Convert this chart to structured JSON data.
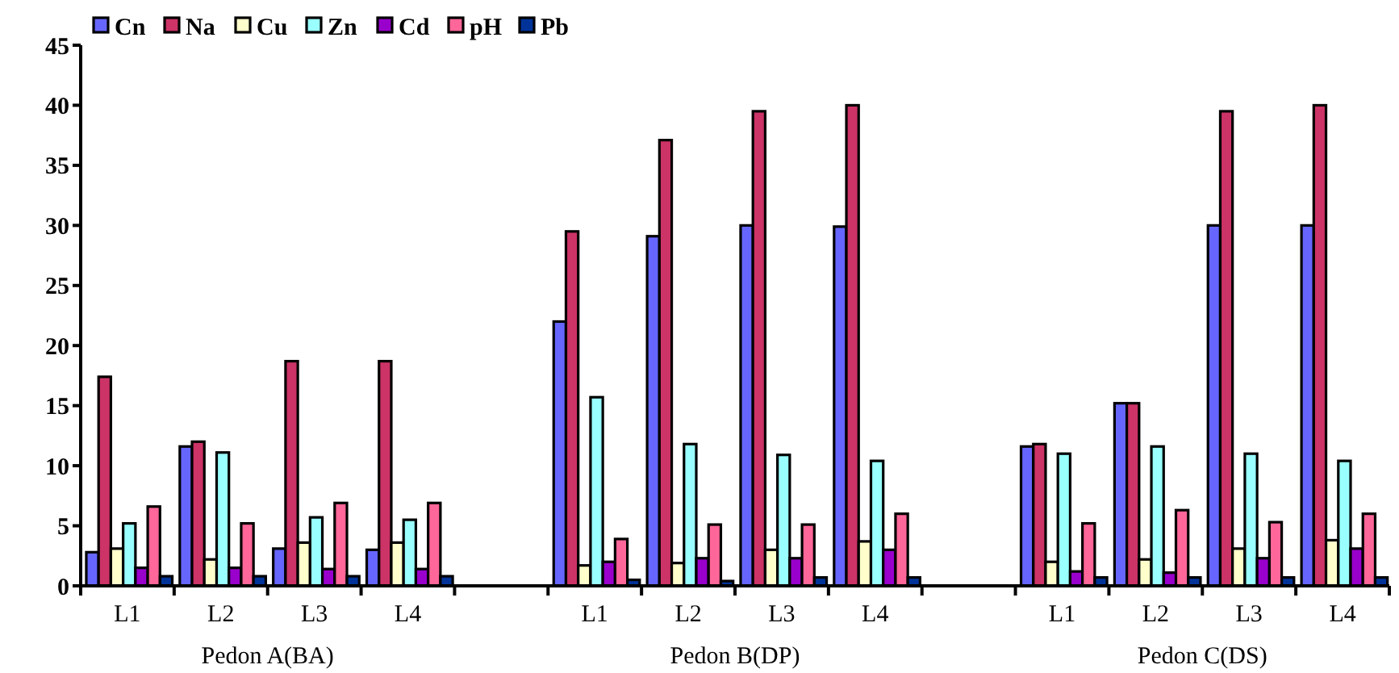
{
  "chart_data": {
    "type": "bar",
    "categories": [
      "L1",
      "L2",
      "L3",
      "L4",
      null,
      "L1",
      "L2",
      "L3",
      "L4",
      null,
      "L1",
      "L2",
      "L3",
      "L4"
    ],
    "series": [
      {
        "name": "Cn",
        "color": "#6666ff",
        "values": [
          2.8,
          11.6,
          3.1,
          3.0,
          null,
          22,
          29.1,
          30,
          29.9,
          null,
          11.6,
          15.2,
          30,
          30
        ]
      },
      {
        "name": "Na",
        "color": "#cc3366",
        "values": [
          17.4,
          12.0,
          18.7,
          18.7,
          null,
          29.5,
          37.1,
          39.5,
          40,
          null,
          11.8,
          15.2,
          39.5,
          40
        ]
      },
      {
        "name": "Cu",
        "color": "#ffffcc",
        "values": [
          3.1,
          2.2,
          3.6,
          3.6,
          null,
          1.7,
          1.9,
          3.0,
          3.7,
          null,
          2.0,
          2.2,
          3.1,
          3.8
        ]
      },
      {
        "name": "Zn",
        "color": "#99ffff",
        "values": [
          5.2,
          11.1,
          5.7,
          5.5,
          null,
          15.7,
          11.8,
          10.9,
          10.4,
          null,
          11.0,
          11.6,
          11.0,
          10.4
        ]
      },
      {
        "name": "Cd",
        "color": "#9900cc",
        "values": [
          1.5,
          1.5,
          1.4,
          1.4,
          null,
          2.0,
          2.3,
          2.3,
          3.0,
          null,
          1.2,
          1.1,
          2.3,
          3.1
        ]
      },
      {
        "name": "pH",
        "color": "#ff6699",
        "values": [
          6.6,
          5.2,
          6.9,
          6.9,
          null,
          3.9,
          5.1,
          5.1,
          6.0,
          null,
          5.2,
          6.3,
          5.3,
          6.0
        ]
      },
      {
        "name": "Pb",
        "color": "#003399",
        "values": [
          0.8,
          0.8,
          0.8,
          0.8,
          null,
          0.5,
          0.4,
          0.7,
          0.7,
          null,
          0.7,
          0.7,
          0.7,
          0.7
        ]
      }
    ],
    "ylim": [
      0,
      45
    ],
    "yticks": [
      0,
      5,
      10,
      15,
      20,
      25,
      30,
      35,
      40,
      45
    ],
    "legend": "top left",
    "annotations": [
      "Pedon A(BA)",
      "Pedon B(DP)",
      "Pedon C(DS)"
    ]
  }
}
